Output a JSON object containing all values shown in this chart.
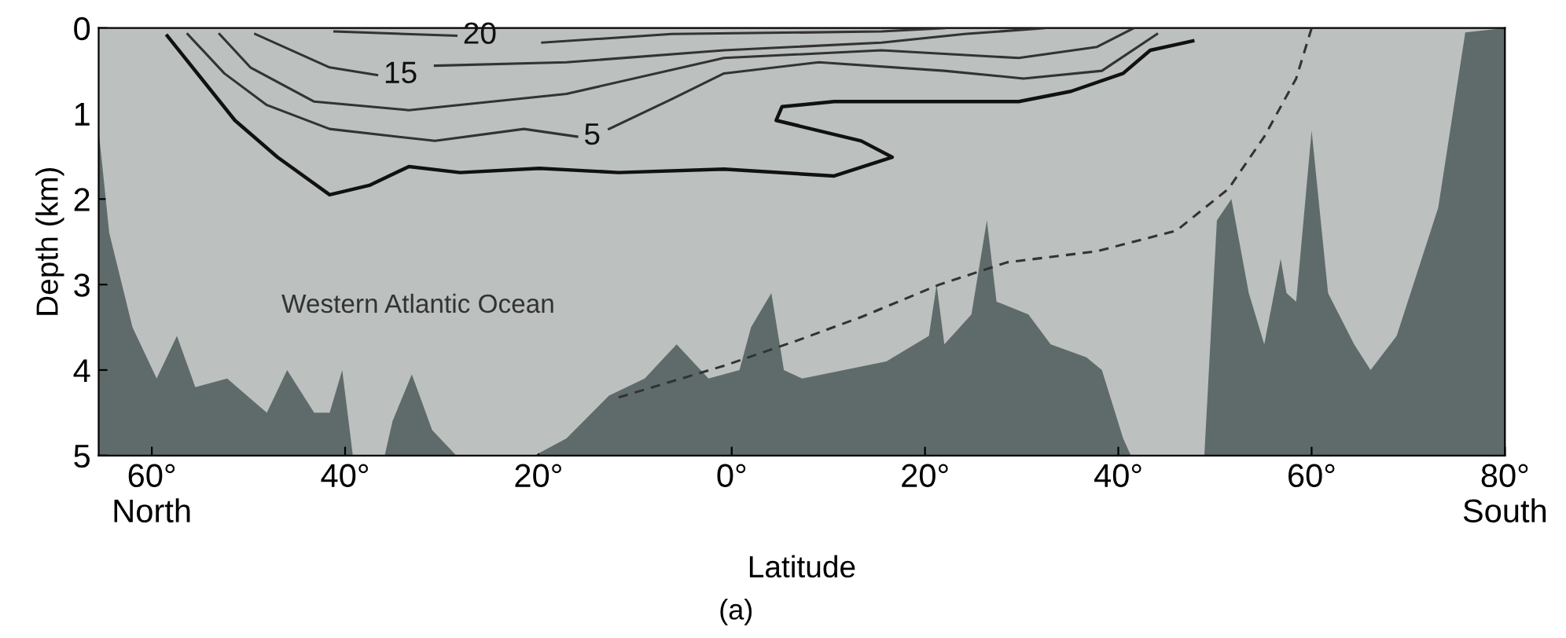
{
  "chart_data": {
    "type": "line",
    "xlabel": "Latitude",
    "ylabel": "Depth (km)",
    "xlim": [
      65.5,
      -80
    ],
    "ylim": [
      5,
      0
    ],
    "xticks": [
      {
        "value": 60,
        "label": "60°\nNorth"
      },
      {
        "value": 40,
        "label": "40°"
      },
      {
        "value": 20,
        "label": "20°"
      },
      {
        "value": 0,
        "label": "0°"
      },
      {
        "value": -20,
        "label": "20°"
      },
      {
        "value": -40,
        "label": "40°"
      },
      {
        "value": -60,
        "label": "60°"
      },
      {
        "value": -80,
        "label": "80°\nSouth"
      }
    ],
    "yticks": [
      0,
      1,
      2,
      3,
      4,
      5
    ],
    "grid": false,
    "legend": false,
    "series": [
      {
        "type": "area",
        "color": "#bcc0be",
        "x": [
          65.5,
          64.4,
          62.0,
          59.5,
          57.4,
          55.5,
          52.2,
          48.1,
          46.0,
          43.2,
          41.6,
          40.3,
          39.2,
          35.9,
          35.1,
          33.1,
          31.0,
          28.5,
          20.4,
          17.1,
          12.7,
          9.0,
          5.7,
          2.4,
          -0.8,
          -2.0,
          -4.1,
          -5.4,
          -7.3,
          -16.0,
          -20.4,
          -21.2,
          -22.0,
          -24.8,
          -26.4,
          -27.4,
          -30.7,
          -33.0,
          -36.7,
          -38.3,
          -40.5,
          -41.3,
          -48.9,
          -50.2,
          -51.7,
          -53.5,
          -55.1,
          -56.8,
          -57.4,
          -58.4,
          -60.0,
          -61.7,
          -64.4,
          -66.1,
          -68.8,
          -73.1,
          -75.9,
          -80
        ],
        "values": [
          1.2,
          2.4,
          3.5,
          4.1,
          3.6,
          4.2,
          4.1,
          4.5,
          4.0,
          4.5,
          4.5,
          4.0,
          5.0,
          5.0,
          4.6,
          4.05,
          4.7,
          5.0,
          5.0,
          4.8,
          4.3,
          4.1,
          3.7,
          4.1,
          4.0,
          3.5,
          3.1,
          4.0,
          4.1,
          3.9,
          3.6,
          3.0,
          3.7,
          3.35,
          2.25,
          3.2,
          3.35,
          3.7,
          3.85,
          4.0,
          4.8,
          5.0,
          5.0,
          2.25,
          2.0,
          3.1,
          3.7,
          2.7,
          3.1,
          3.2,
          1.2,
          3.1,
          3.7,
          4.0,
          3.6,
          2.1,
          0.05,
          0.0
        ]
      },
      {
        "color": "#111111",
        "line_style": "solid",
        "x": [
          58.4,
          51.4,
          47.0,
          41.6,
          37.5,
          33.4,
          28.1,
          19.9,
          11.7,
          0.8,
          -10.6,
          -16.6,
          -13.4,
          -4.6,
          -5.2,
          -10.6,
          -18.8,
          -29.7,
          -35.1,
          -40.5,
          -43.3,
          -47.7
        ],
        "values": [
          0.09,
          1.08,
          1.51,
          1.95,
          1.84,
          1.62,
          1.69,
          1.64,
          1.69,
          1.65,
          1.73,
          1.51,
          1.32,
          1.08,
          0.92,
          0.86,
          0.86,
          0.86,
          0.74,
          0.53,
          0.26,
          0.15
        ]
      },
      {
        "name": "5",
        "color": "#333333",
        "line_style": "solid",
        "x": [
          56.3,
          52.5,
          48.1,
          41.6,
          30.7,
          21.5,
          16.0
        ],
        "values": [
          0.07,
          0.53,
          0.9,
          1.18,
          1.32,
          1.18,
          1.27
        ]
      },
      {
        "color": "#333333",
        "line_style": "solid",
        "x": [
          12.7,
          6.2,
          0.8,
          -9.0,
          -22.0,
          -30.2,
          -38.3,
          -44.0
        ],
        "values": [
          1.18,
          0.83,
          0.53,
          0.4,
          0.5,
          0.59,
          0.5,
          0.07
        ]
      },
      {
        "color": "#333333",
        "line_style": "solid",
        "x": [
          53.0,
          49.8,
          43.2,
          33.4,
          17.1,
          0.8,
          -15.5,
          -29.7,
          -37.8,
          -41.6
        ],
        "values": [
          0.07,
          0.46,
          0.86,
          0.96,
          0.77,
          0.35,
          0.26,
          0.35,
          0.22,
          0.0
        ]
      },
      {
        "name": "15",
        "color": "#333333",
        "line_style": "solid",
        "x": [
          49.3,
          41.6,
          36.7
        ],
        "values": [
          0.07,
          0.46,
          0.55
        ]
      },
      {
        "color": "#333333",
        "line_style": "solid",
        "x": [
          30.7,
          17.1,
          0.8,
          -15.5,
          -24.1,
          -32.3
        ],
        "values": [
          0.44,
          0.4,
          0.26,
          0.17,
          0.07,
          0.0
        ]
      },
      {
        "name": "20",
        "color": "#333333",
        "line_style": "solid",
        "x": [
          41.1,
          28.5
        ],
        "values": [
          0.04,
          0.09
        ]
      },
      {
        "color": "#333333",
        "line_style": "solid",
        "x": [
          19.6,
          6.2,
          -15.5,
          -22.0
        ],
        "values": [
          0.17,
          0.07,
          0.04,
          0.0
        ]
      },
      {
        "color": "#333333",
        "line_style": "dashed",
        "x": [
          11.7,
          0.8,
          -6.9,
          -13.4,
          -21.5,
          -28.5,
          -37.8,
          -46.0,
          -51.4,
          -55.1,
          -58.4,
          -60.0
        ],
        "values": [
          4.32,
          3.95,
          3.65,
          3.38,
          3.0,
          2.74,
          2.61,
          2.37,
          1.88,
          1.27,
          0.59,
          0.0
        ]
      }
    ],
    "annotations": [
      "Western Atlantic Ocean",
      "(a)"
    ]
  }
}
